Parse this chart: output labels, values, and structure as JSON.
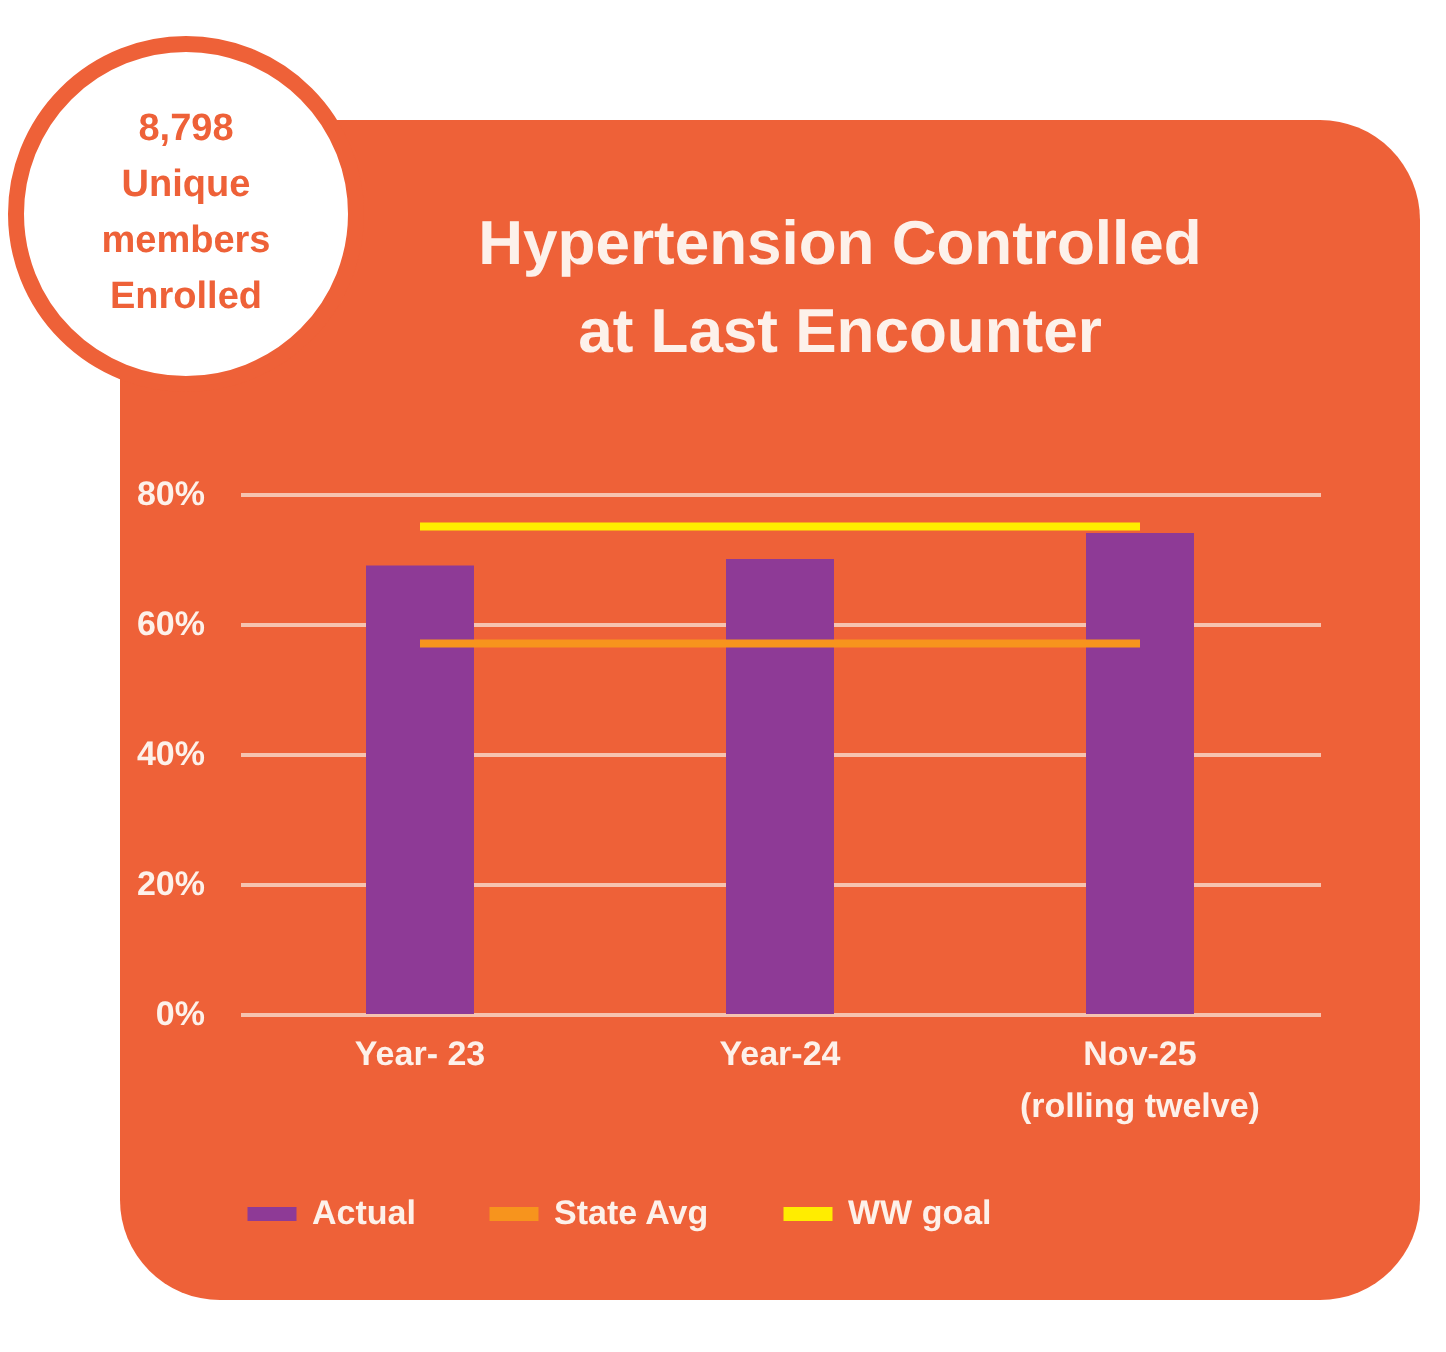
{
  "chart_data": {
    "type": "bar",
    "title": [
      "Hypertension Controlled",
      "at Last Encounter"
    ],
    "annotations": [
      "8,798 Unique members Enrolled"
    ],
    "categories": [
      "Year- 23",
      "Year-24",
      "Nov-25 (rolling twelve)"
    ],
    "series": [
      {
        "name": "Actual",
        "color": "#8e3a96",
        "values": [
          69,
          70,
          74
        ]
      },
      {
        "name": "State Avg",
        "type": "line",
        "color": "#f7941d",
        "values": [
          57,
          57,
          57
        ]
      },
      {
        "name": "WW goal",
        "type": "line",
        "color": "#ffed00",
        "values": [
          75,
          75,
          75
        ]
      }
    ],
    "ylim": [
      0,
      80
    ],
    "yticks": [
      {
        "value": 0,
        "label": "0%"
      },
      {
        "value": 20,
        "label": "20%"
      },
      {
        "value": 40,
        "label": "40%"
      },
      {
        "value": 60,
        "label": "60%"
      },
      {
        "value": 80,
        "label": "80%"
      }
    ],
    "grid": "y",
    "legend": "bottom"
  }
}
